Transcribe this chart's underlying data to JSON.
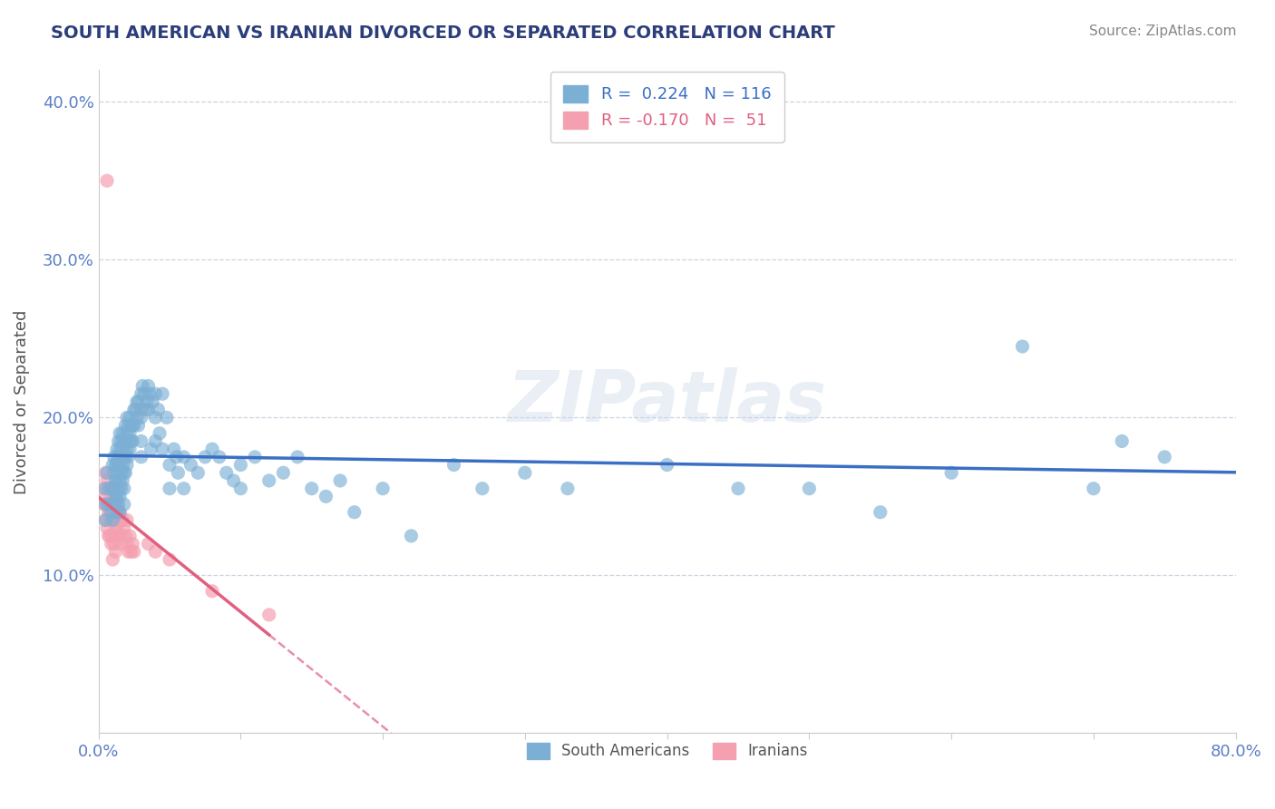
{
  "title": "SOUTH AMERICAN VS IRANIAN DIVORCED OR SEPARATED CORRELATION CHART",
  "source": "Source: ZipAtlas.com",
  "ylabel": "Divorced or Separated",
  "xlim": [
    0.0,
    0.8
  ],
  "ylim": [
    0.0,
    0.42
  ],
  "xticks": [
    0.0,
    0.1,
    0.2,
    0.3,
    0.4,
    0.5,
    0.6,
    0.7,
    0.8
  ],
  "xticklabels": [
    "0.0%",
    "",
    "",
    "",
    "",
    "",
    "",
    "",
    "80.0%"
  ],
  "yticks": [
    0.0,
    0.1,
    0.2,
    0.3,
    0.4
  ],
  "yticklabels": [
    "",
    "10.0%",
    "20.0%",
    "30.0%",
    "40.0%"
  ],
  "blue_color": "#7bafd4",
  "blue_line_color": "#3a6fc4",
  "pink_color": "#f4a0b0",
  "pink_line_color": "#e06080",
  "legend_blue_r": "0.224",
  "legend_blue_n": "116",
  "legend_pink_r": "-0.170",
  "legend_pink_n": "51",
  "legend_label1": "South Americans",
  "legend_label2": "Iranians",
  "title_color": "#2c3e7a",
  "source_color": "#888888",
  "tick_color": "#5b7fc7",
  "watermark": "ZIPatlas",
  "blue_scatter": [
    [
      0.005,
      0.155
    ],
    [
      0.005,
      0.145
    ],
    [
      0.005,
      0.135
    ],
    [
      0.006,
      0.165
    ],
    [
      0.007,
      0.145
    ],
    [
      0.008,
      0.155
    ],
    [
      0.009,
      0.14
    ],
    [
      0.01,
      0.17
    ],
    [
      0.01,
      0.155
    ],
    [
      0.01,
      0.145
    ],
    [
      0.01,
      0.135
    ],
    [
      0.011,
      0.175
    ],
    [
      0.011,
      0.165
    ],
    [
      0.012,
      0.17
    ],
    [
      0.012,
      0.16
    ],
    [
      0.012,
      0.15
    ],
    [
      0.013,
      0.18
    ],
    [
      0.013,
      0.17
    ],
    [
      0.013,
      0.16
    ],
    [
      0.013,
      0.15
    ],
    [
      0.013,
      0.14
    ],
    [
      0.014,
      0.185
    ],
    [
      0.014,
      0.175
    ],
    [
      0.014,
      0.165
    ],
    [
      0.014,
      0.155
    ],
    [
      0.014,
      0.145
    ],
    [
      0.015,
      0.19
    ],
    [
      0.015,
      0.18
    ],
    [
      0.015,
      0.17
    ],
    [
      0.015,
      0.16
    ],
    [
      0.015,
      0.15
    ],
    [
      0.015,
      0.14
    ],
    [
      0.016,
      0.185
    ],
    [
      0.016,
      0.175
    ],
    [
      0.016,
      0.165
    ],
    [
      0.016,
      0.155
    ],
    [
      0.017,
      0.19
    ],
    [
      0.017,
      0.18
    ],
    [
      0.017,
      0.17
    ],
    [
      0.017,
      0.16
    ],
    [
      0.018,
      0.185
    ],
    [
      0.018,
      0.175
    ],
    [
      0.018,
      0.165
    ],
    [
      0.018,
      0.155
    ],
    [
      0.018,
      0.145
    ],
    [
      0.019,
      0.195
    ],
    [
      0.019,
      0.185
    ],
    [
      0.019,
      0.175
    ],
    [
      0.019,
      0.165
    ],
    [
      0.02,
      0.2
    ],
    [
      0.02,
      0.19
    ],
    [
      0.02,
      0.18
    ],
    [
      0.02,
      0.17
    ],
    [
      0.021,
      0.195
    ],
    [
      0.021,
      0.185
    ],
    [
      0.021,
      0.175
    ],
    [
      0.022,
      0.2
    ],
    [
      0.022,
      0.19
    ],
    [
      0.022,
      0.18
    ],
    [
      0.023,
      0.195
    ],
    [
      0.023,
      0.185
    ],
    [
      0.024,
      0.195
    ],
    [
      0.024,
      0.185
    ],
    [
      0.025,
      0.205
    ],
    [
      0.025,
      0.195
    ],
    [
      0.026,
      0.205
    ],
    [
      0.027,
      0.21
    ],
    [
      0.027,
      0.2
    ],
    [
      0.028,
      0.21
    ],
    [
      0.028,
      0.195
    ],
    [
      0.03,
      0.215
    ],
    [
      0.03,
      0.2
    ],
    [
      0.03,
      0.185
    ],
    [
      0.03,
      0.175
    ],
    [
      0.031,
      0.22
    ],
    [
      0.032,
      0.215
    ],
    [
      0.033,
      0.205
    ],
    [
      0.034,
      0.21
    ],
    [
      0.035,
      0.22
    ],
    [
      0.035,
      0.205
    ],
    [
      0.036,
      0.215
    ],
    [
      0.037,
      0.18
    ],
    [
      0.038,
      0.21
    ],
    [
      0.04,
      0.215
    ],
    [
      0.04,
      0.2
    ],
    [
      0.04,
      0.185
    ],
    [
      0.042,
      0.205
    ],
    [
      0.043,
      0.19
    ],
    [
      0.045,
      0.215
    ],
    [
      0.045,
      0.18
    ],
    [
      0.048,
      0.2
    ],
    [
      0.05,
      0.17
    ],
    [
      0.05,
      0.155
    ],
    [
      0.053,
      0.18
    ],
    [
      0.055,
      0.175
    ],
    [
      0.056,
      0.165
    ],
    [
      0.06,
      0.175
    ],
    [
      0.06,
      0.155
    ],
    [
      0.065,
      0.17
    ],
    [
      0.07,
      0.165
    ],
    [
      0.075,
      0.175
    ],
    [
      0.08,
      0.18
    ],
    [
      0.085,
      0.175
    ],
    [
      0.09,
      0.165
    ],
    [
      0.095,
      0.16
    ],
    [
      0.1,
      0.17
    ],
    [
      0.1,
      0.155
    ],
    [
      0.11,
      0.175
    ],
    [
      0.12,
      0.16
    ],
    [
      0.13,
      0.165
    ],
    [
      0.14,
      0.175
    ],
    [
      0.15,
      0.155
    ],
    [
      0.16,
      0.15
    ],
    [
      0.17,
      0.16
    ],
    [
      0.18,
      0.14
    ],
    [
      0.2,
      0.155
    ],
    [
      0.22,
      0.125
    ],
    [
      0.25,
      0.17
    ],
    [
      0.27,
      0.155
    ],
    [
      0.3,
      0.165
    ],
    [
      0.33,
      0.155
    ],
    [
      0.4,
      0.17
    ],
    [
      0.45,
      0.155
    ],
    [
      0.5,
      0.155
    ],
    [
      0.55,
      0.14
    ],
    [
      0.6,
      0.165
    ],
    [
      0.65,
      0.245
    ],
    [
      0.7,
      0.155
    ],
    [
      0.72,
      0.185
    ],
    [
      0.75,
      0.175
    ]
  ],
  "pink_scatter": [
    [
      0.004,
      0.155
    ],
    [
      0.004,
      0.145
    ],
    [
      0.005,
      0.165
    ],
    [
      0.005,
      0.15
    ],
    [
      0.005,
      0.135
    ],
    [
      0.006,
      0.16
    ],
    [
      0.006,
      0.145
    ],
    [
      0.006,
      0.13
    ],
    [
      0.007,
      0.155
    ],
    [
      0.007,
      0.14
    ],
    [
      0.007,
      0.125
    ],
    [
      0.008,
      0.155
    ],
    [
      0.008,
      0.14
    ],
    [
      0.008,
      0.125
    ],
    [
      0.009,
      0.15
    ],
    [
      0.009,
      0.135
    ],
    [
      0.009,
      0.12
    ],
    [
      0.01,
      0.155
    ],
    [
      0.01,
      0.14
    ],
    [
      0.01,
      0.125
    ],
    [
      0.01,
      0.11
    ],
    [
      0.011,
      0.15
    ],
    [
      0.011,
      0.135
    ],
    [
      0.011,
      0.12
    ],
    [
      0.012,
      0.145
    ],
    [
      0.012,
      0.13
    ],
    [
      0.012,
      0.115
    ],
    [
      0.013,
      0.145
    ],
    [
      0.013,
      0.13
    ],
    [
      0.014,
      0.14
    ],
    [
      0.014,
      0.125
    ],
    [
      0.015,
      0.14
    ],
    [
      0.015,
      0.125
    ],
    [
      0.016,
      0.135
    ],
    [
      0.016,
      0.12
    ],
    [
      0.017,
      0.135
    ],
    [
      0.018,
      0.13
    ],
    [
      0.019,
      0.125
    ],
    [
      0.02,
      0.135
    ],
    [
      0.02,
      0.12
    ],
    [
      0.021,
      0.115
    ],
    [
      0.022,
      0.125
    ],
    [
      0.023,
      0.115
    ],
    [
      0.024,
      0.12
    ],
    [
      0.025,
      0.115
    ],
    [
      0.006,
      0.35
    ],
    [
      0.03,
      0.205
    ],
    [
      0.035,
      0.12
    ],
    [
      0.04,
      0.115
    ],
    [
      0.05,
      0.11
    ],
    [
      0.08,
      0.09
    ],
    [
      0.12,
      0.075
    ]
  ],
  "blue_line": [
    [
      0.0,
      0.145
    ],
    [
      0.8,
      0.175
    ]
  ],
  "pink_line_solid": [
    [
      0.0,
      0.155
    ],
    [
      0.12,
      0.095
    ]
  ],
  "pink_line_dash": [
    [
      0.12,
      0.095
    ],
    [
      0.8,
      0.025
    ]
  ]
}
